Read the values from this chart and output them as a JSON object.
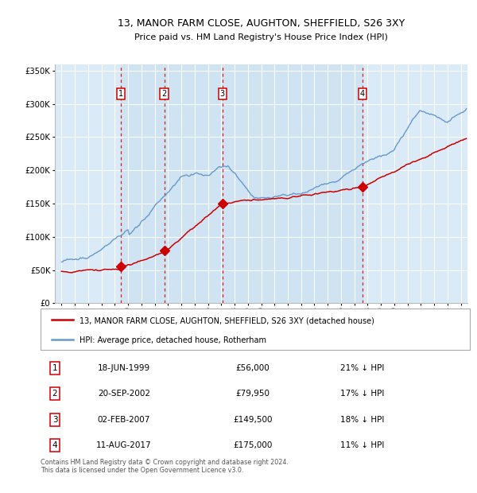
{
  "title1": "13, MANOR FARM CLOSE, AUGHTON, SHEFFIELD, S26 3XY",
  "title2": "Price paid vs. HM Land Registry's House Price Index (HPI)",
  "background_color": "#ddeeff",
  "plot_bg": "#daeaf7",
  "hpi_color": "#6699cc",
  "price_color": "#cc0000",
  "transactions": [
    {
      "num": 1,
      "date": "18-JUN-1999",
      "date_x": 1999.46,
      "price": 56000,
      "pct": "21% ↓ HPI"
    },
    {
      "num": 2,
      "date": "20-SEP-2002",
      "date_x": 2002.72,
      "price": 79950,
      "pct": "17% ↓ HPI"
    },
    {
      "num": 3,
      "date": "02-FEB-2007",
      "date_x": 2007.09,
      "price": 149500,
      "pct": "18% ↓ HPI"
    },
    {
      "num": 4,
      "date": "11-AUG-2017",
      "date_x": 2017.61,
      "price": 175000,
      "pct": "11% ↓ HPI"
    }
  ],
  "legend_line1": "13, MANOR FARM CLOSE, AUGHTON, SHEFFIELD, S26 3XY (detached house)",
  "legend_line2": "HPI: Average price, detached house, Rotherham",
  "footer": "Contains HM Land Registry data © Crown copyright and database right 2024.\nThis data is licensed under the Open Government Licence v3.0.",
  "ylim": [
    0,
    360000
  ],
  "yticks": [
    0,
    50000,
    100000,
    150000,
    200000,
    250000,
    300000,
    350000
  ],
  "xlim": [
    1994.5,
    2025.5
  ],
  "xticks": [
    1995,
    1996,
    1997,
    1998,
    1999,
    2000,
    2001,
    2002,
    2003,
    2004,
    2005,
    2006,
    2007,
    2008,
    2009,
    2010,
    2011,
    2012,
    2013,
    2014,
    2015,
    2016,
    2017,
    2018,
    2019,
    2020,
    2021,
    2022,
    2023,
    2024,
    2025
  ]
}
